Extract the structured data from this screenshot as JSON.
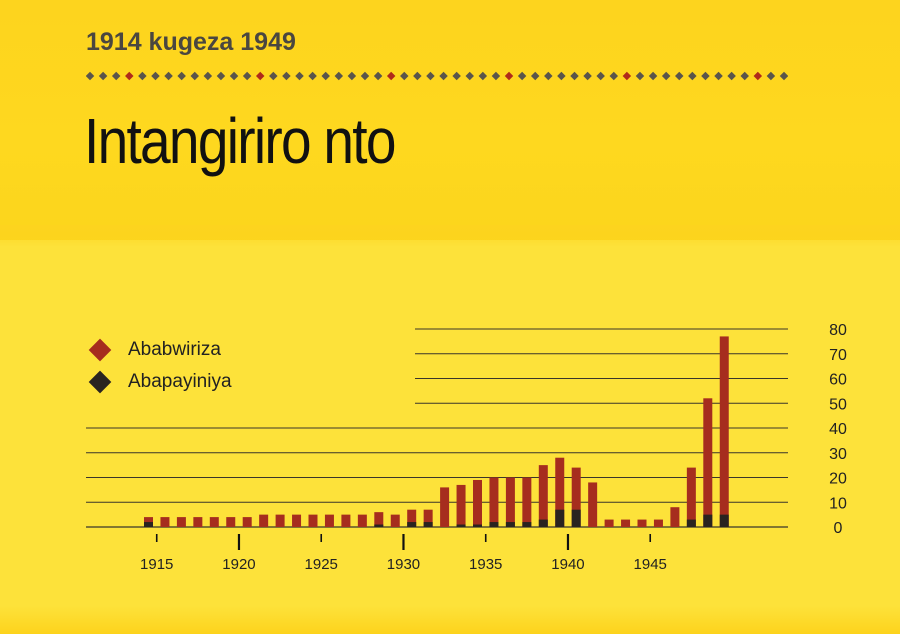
{
  "header": {
    "subtitle": "1914 kugeza 1949",
    "title": "Intangiriro nto"
  },
  "colors": {
    "ababwiriza": "#a62d1e",
    "abapayiniya": "#2a2420",
    "dot_gray": "#5a554b",
    "dot_red": "#b02a1a"
  },
  "chart_data": {
    "type": "bar",
    "stacked": true,
    "x": [
      1914,
      1915,
      1916,
      1917,
      1918,
      1919,
      1920,
      1921,
      1922,
      1923,
      1924,
      1925,
      1926,
      1927,
      1928,
      1929,
      1930,
      1931,
      1932,
      1933,
      1934,
      1935,
      1936,
      1937,
      1938,
      1939,
      1940,
      1941,
      1942,
      1943,
      1944,
      1945,
      1946,
      1947,
      1948,
      1949
    ],
    "series": [
      {
        "name": "Ababwiriza",
        "values": [
          4,
          4,
          4,
          4,
          4,
          4,
          4,
          5,
          5,
          5,
          5,
          5,
          5,
          5,
          6,
          5,
          7,
          7,
          16,
          17,
          19,
          20,
          20,
          20,
          25,
          28,
          24,
          18,
          3,
          3,
          3,
          3,
          8,
          24,
          52,
          77
        ]
      },
      {
        "name": "Abapayiniya",
        "values": [
          2,
          0,
          0,
          0,
          0,
          0,
          0,
          0,
          0,
          0,
          0,
          0,
          0,
          0,
          1,
          0,
          2,
          2,
          0,
          1,
          1,
          2,
          2,
          2,
          3,
          7,
          7,
          0,
          0,
          0,
          0,
          0,
          0,
          3,
          5,
          5
        ]
      }
    ],
    "x_ticks": [
      1915,
      1920,
      1925,
      1930,
      1935,
      1940,
      1945
    ],
    "y_ticks": [
      0,
      10,
      20,
      30,
      40,
      50,
      60,
      70,
      80
    ],
    "ylim": [
      0,
      80
    ],
    "grid": true,
    "legend": "left"
  }
}
